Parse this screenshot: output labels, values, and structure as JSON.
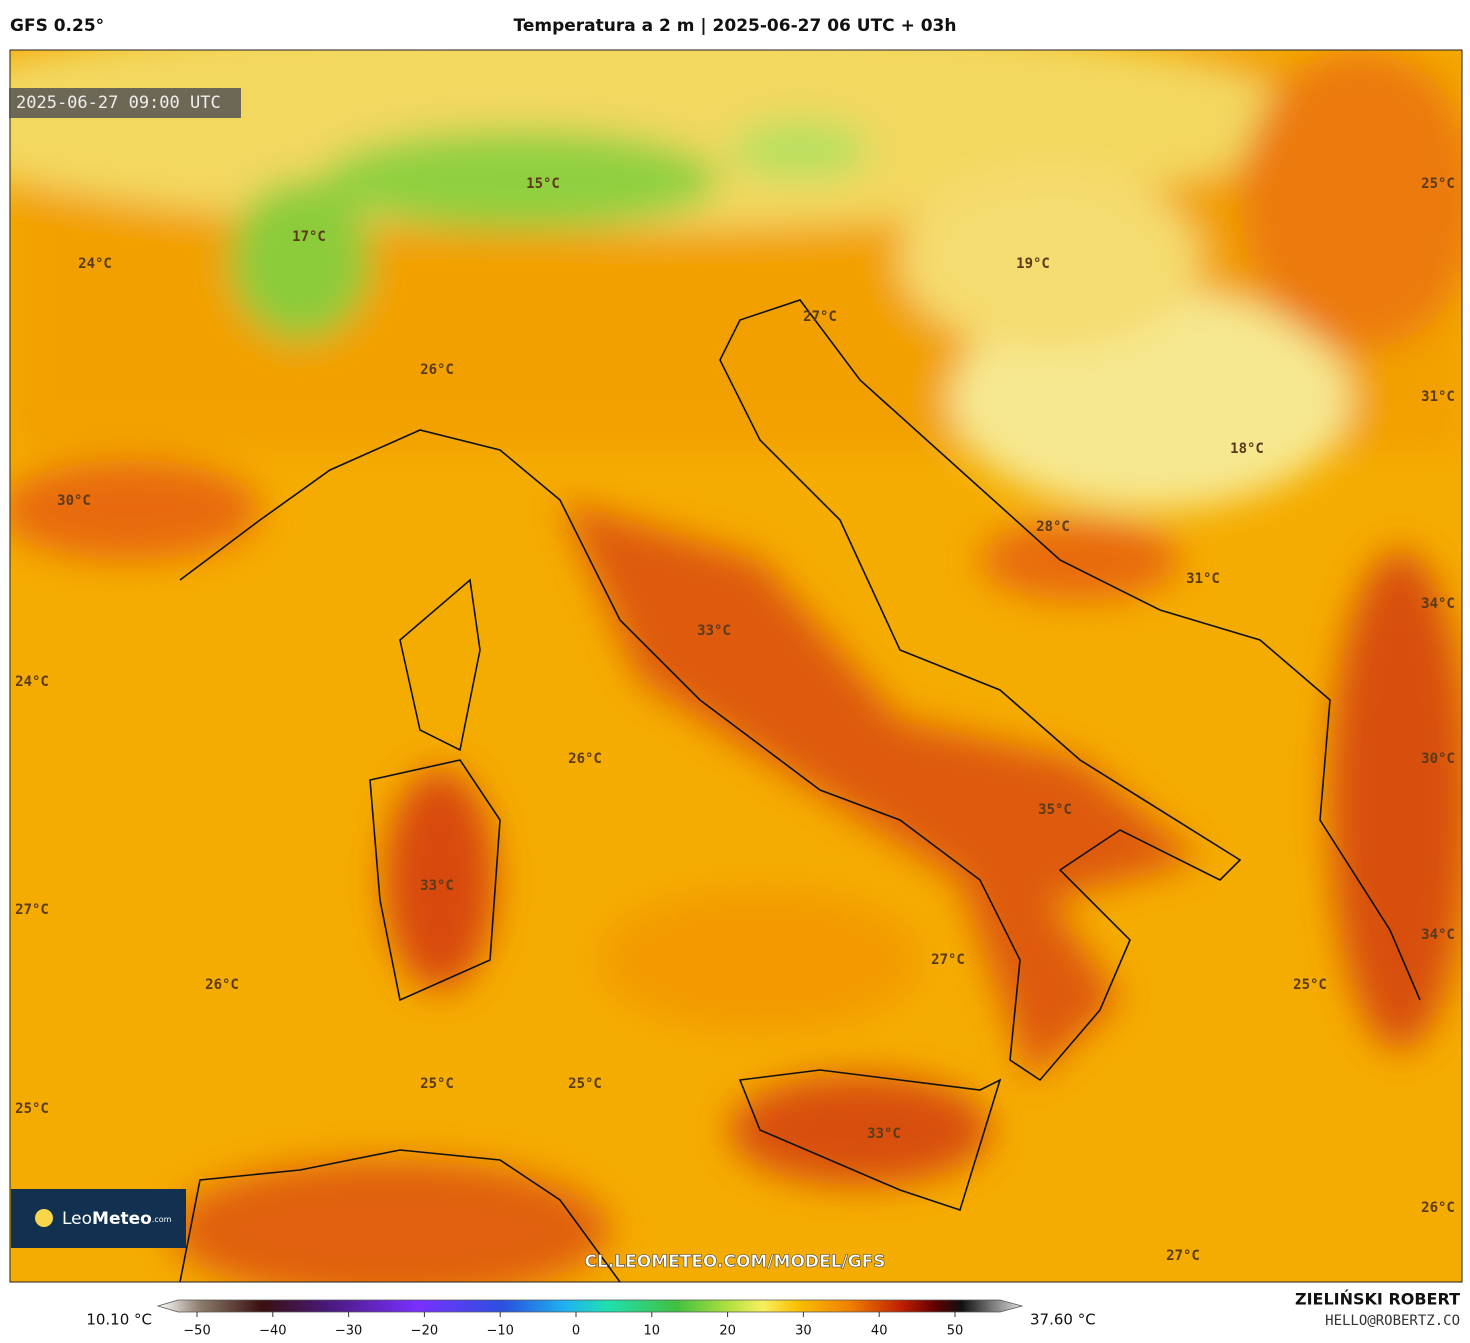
{
  "header": {
    "model": "GFS 0.25°",
    "title": "Temperatura a 2 m | 2025-06-27 06 UTC + 03h",
    "valid_time": "2025-06-27 09:00 UTC"
  },
  "map": {
    "labels": [
      "15°C",
      "17°C",
      "24°C",
      "27°C",
      "19°C",
      "25°C",
      "26°C",
      "31°C",
      "18°C",
      "30°C",
      "28°C",
      "31°C",
      "34°C",
      "33°C",
      "24°C",
      "26°C",
      "30°C",
      "35°C",
      "33°C",
      "27°C",
      "34°C",
      "26°C",
      "27°C",
      "25°C",
      "25°C",
      "25°C",
      "25°C",
      "33°C",
      "26°C",
      "27°C"
    ]
  },
  "watermark": "CL.LEOMETEO.COM/MODEL/GFS",
  "logo": {
    "light": "Leo",
    "bold": "Meteo",
    "suffix": ".com"
  },
  "colorbar": {
    "min_label": "10.10 °C",
    "max_label": "37.60 °C",
    "ticks": [
      {
        "value": -50,
        "label": "−50"
      },
      {
        "value": -40,
        "label": "−40"
      },
      {
        "value": -30,
        "label": "−30"
      },
      {
        "value": -20,
        "label": "−20"
      },
      {
        "value": -10,
        "label": "−10"
      },
      0,
      10,
      20,
      30,
      40,
      50
    ]
  },
  "credit": {
    "author": "ZIELIŃSKI ROBERT",
    "email": "HELLO@ROBERTZ.CO"
  }
}
